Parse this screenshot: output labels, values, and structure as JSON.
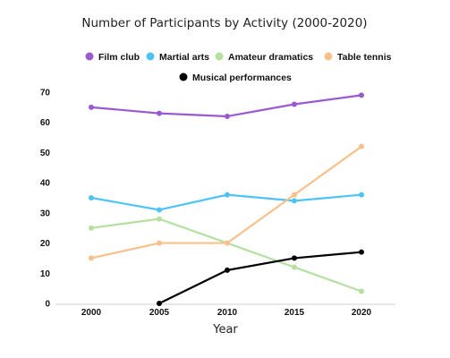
{
  "chart_data": {
    "type": "line",
    "title": "Number of Participants by Activity (2000-2020)",
    "xlabel": "Year",
    "ylabel": "",
    "x": [
      2000,
      2005,
      2010,
      2015,
      2020
    ],
    "x_tick_labels": [
      "2000",
      "2005",
      "2010",
      "2015",
      "2020"
    ],
    "ylim": [
      0,
      70
    ],
    "y_ticks": [
      0,
      10,
      20,
      30,
      40,
      50,
      60,
      70
    ],
    "grid": false,
    "legend_position": "top-center",
    "series": [
      {
        "name": "Film club",
        "color": "#9b59d0",
        "values": [
          65,
          63,
          62,
          66,
          69
        ]
      },
      {
        "name": "Martial arts",
        "color": "#4fc3f7",
        "values": [
          35,
          31,
          36,
          34,
          36
        ]
      },
      {
        "name": "Amateur dramatics",
        "color": "#b5e0a0",
        "values": [
          25,
          28,
          20,
          12,
          4
        ]
      },
      {
        "name": "Table tennis",
        "color": "#f8c08a",
        "values": [
          15,
          20,
          20,
          36,
          52
        ]
      },
      {
        "name": "Musical performances",
        "color": "#000000",
        "values": [
          null,
          0,
          11,
          15,
          17
        ]
      }
    ]
  }
}
